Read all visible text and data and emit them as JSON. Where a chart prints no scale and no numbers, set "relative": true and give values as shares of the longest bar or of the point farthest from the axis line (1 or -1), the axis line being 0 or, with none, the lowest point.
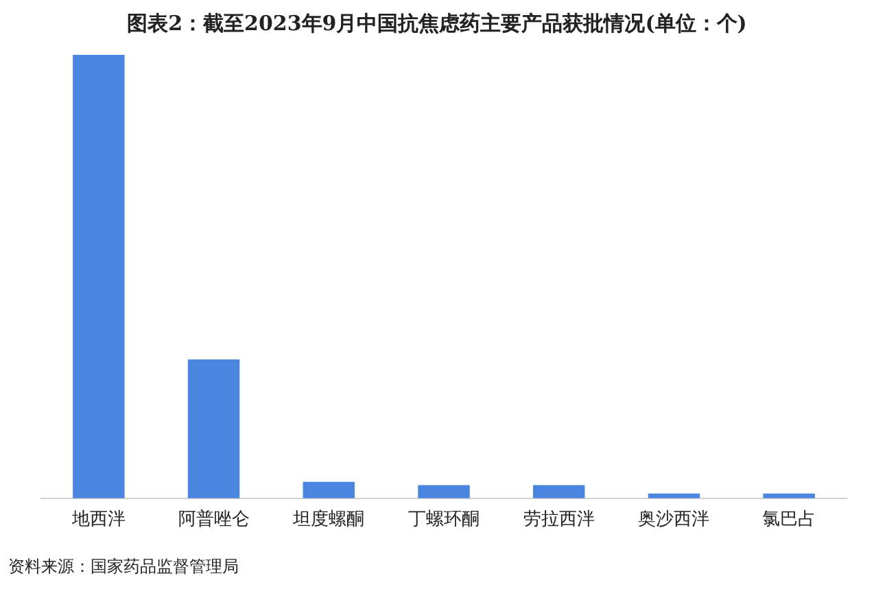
{
  "chart_data": {
    "type": "bar",
    "title": "图表2：截至2023年9月中国抗焦虑药主要产品获批情况(单位：个)",
    "categories": [
      "地西泮",
      "阿普唑仑",
      "坦度螺酮",
      "丁螺环酮",
      "劳拉西泮",
      "奥沙西泮",
      "氯巴占"
    ],
    "values": [
      1,
      0.313,
      0.037,
      0.03,
      0.03,
      0.011,
      0.011
    ],
    "color": "#4a86e0",
    "relative": true,
    "grid": false,
    "legend": false,
    "annotations": [
      "资料来源：国家药品监督管理局"
    ]
  }
}
